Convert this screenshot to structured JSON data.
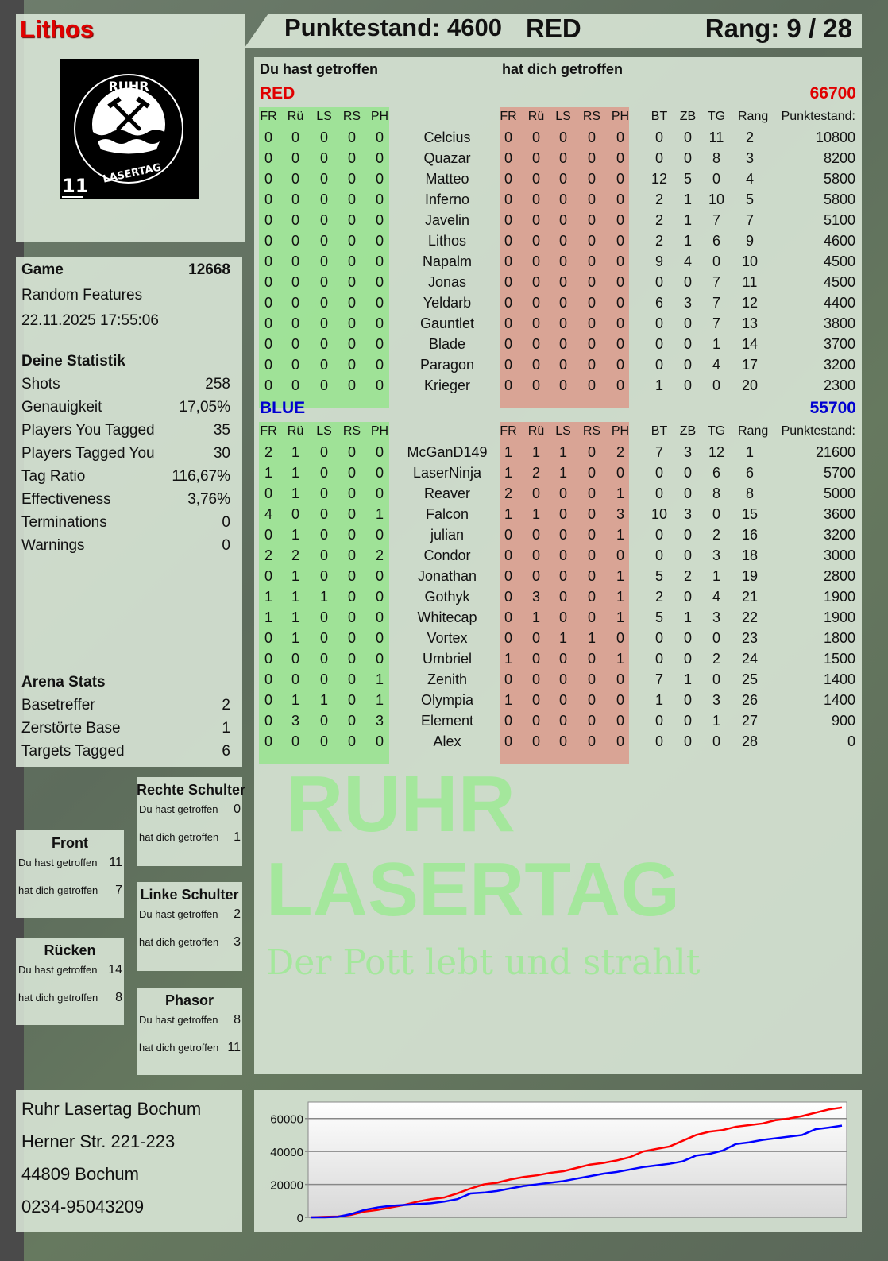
{
  "player": {
    "name": "Lithos",
    "logo_text": [
      "RUHR",
      "LASERTAG"
    ],
    "logo_number": "11"
  },
  "header": {
    "score_label": "Punktestand: 4600",
    "team": "RED",
    "rank_label": "Rang: 9 / 28"
  },
  "watermark": {
    "line1": "RUHR",
    "line2": "LASERTAG",
    "slogan": "Der Pott lebt und strahlt"
  },
  "game": {
    "label": "Game",
    "id": "12668",
    "mode": "Random Features",
    "datetime": "22.11.2025 17:55:06"
  },
  "stats": {
    "title": "Deine Statistik",
    "rows": [
      {
        "label": "Shots",
        "value": "258"
      },
      {
        "label": "Genauigkeit",
        "value": "17,05%"
      },
      {
        "label": "Players You Tagged",
        "value": "35"
      },
      {
        "label": "Players Tagged You",
        "value": "30"
      },
      {
        "label": "Tag Ratio",
        "value": "116,67%"
      },
      {
        "label": "Effectiveness",
        "value": "3,76%"
      },
      {
        "label": "Terminations",
        "value": "0"
      },
      {
        "label": "Warnings",
        "value": "0"
      }
    ]
  },
  "arena": {
    "title": "Arena Stats",
    "rows": [
      {
        "label": "Basetreffer",
        "value": "2"
      },
      {
        "label": "Zerstörte Base",
        "value": "1"
      },
      {
        "label": "Targets Tagged",
        "value": "6"
      }
    ]
  },
  "zones": [
    {
      "title": "Rechte Schulter",
      "hit_label": "Du hast getroffen",
      "hit": "0",
      "got_label": "hat dich getroffen",
      "got": "1"
    },
    {
      "title": "Front",
      "hit_label": "Du hast getroffen",
      "hit": "11",
      "got_label": "hat dich getroffen",
      "got": "7"
    },
    {
      "title": "Linke Schulter",
      "hit_label": "Du hast getroffen",
      "hit": "2",
      "got_label": "hat dich getroffen",
      "got": "3"
    },
    {
      "title": "Rücken",
      "hit_label": "Du hast getroffen",
      "hit": "14",
      "got_label": "hat dich getroffen",
      "got": "8"
    },
    {
      "title": "Phasor",
      "hit_label": "Du hast getroffen",
      "hit": "8",
      "got_label": "hat dich getroffen",
      "got": "11"
    }
  ],
  "address": [
    "Ruhr Lasertag Bochum",
    "Herner Str. 221-223",
    "44809 Bochum",
    "0234-95043209"
  ],
  "table": {
    "you_hit_label": "Du hast getroffen",
    "hit_you_label": "hat dich getroffen",
    "hit_cols": [
      "FR",
      "Rü",
      "LS",
      "RS",
      "PH"
    ],
    "stat_cols": [
      "BT",
      "ZB",
      "TG",
      "Rang"
    ],
    "score_col": "Punktestand:",
    "teams": [
      {
        "name": "RED",
        "total": "66700",
        "color": "#e00000",
        "players": [
          {
            "name": "Celcius",
            "hit": [
              "0",
              "0",
              "0",
              "0",
              "0"
            ],
            "got": [
              "0",
              "0",
              "0",
              "0",
              "0"
            ],
            "stats": [
              "0",
              "0",
              "11",
              "2"
            ],
            "score": "10800"
          },
          {
            "name": "Quazar",
            "hit": [
              "0",
              "0",
              "0",
              "0",
              "0"
            ],
            "got": [
              "0",
              "0",
              "0",
              "0",
              "0"
            ],
            "stats": [
              "0",
              "0",
              "8",
              "3"
            ],
            "score": "8200"
          },
          {
            "name": "Matteo",
            "hit": [
              "0",
              "0",
              "0",
              "0",
              "0"
            ],
            "got": [
              "0",
              "0",
              "0",
              "0",
              "0"
            ],
            "stats": [
              "12",
              "5",
              "0",
              "4"
            ],
            "score": "5800"
          },
          {
            "name": "Inferno",
            "hit": [
              "0",
              "0",
              "0",
              "0",
              "0"
            ],
            "got": [
              "0",
              "0",
              "0",
              "0",
              "0"
            ],
            "stats": [
              "2",
              "1",
              "10",
              "5"
            ],
            "score": "5800"
          },
          {
            "name": "Javelin",
            "hit": [
              "0",
              "0",
              "0",
              "0",
              "0"
            ],
            "got": [
              "0",
              "0",
              "0",
              "0",
              "0"
            ],
            "stats": [
              "2",
              "1",
              "7",
              "7"
            ],
            "score": "5100"
          },
          {
            "name": "Lithos",
            "hit": [
              "0",
              "0",
              "0",
              "0",
              "0"
            ],
            "got": [
              "0",
              "0",
              "0",
              "0",
              "0"
            ],
            "stats": [
              "2",
              "1",
              "6",
              "9"
            ],
            "score": "4600"
          },
          {
            "name": "Napalm",
            "hit": [
              "0",
              "0",
              "0",
              "0",
              "0"
            ],
            "got": [
              "0",
              "0",
              "0",
              "0",
              "0"
            ],
            "stats": [
              "9",
              "4",
              "0",
              "10"
            ],
            "score": "4500"
          },
          {
            "name": "Jonas",
            "hit": [
              "0",
              "0",
              "0",
              "0",
              "0"
            ],
            "got": [
              "0",
              "0",
              "0",
              "0",
              "0"
            ],
            "stats": [
              "0",
              "0",
              "7",
              "11"
            ],
            "score": "4500"
          },
          {
            "name": "Yeldarb",
            "hit": [
              "0",
              "0",
              "0",
              "0",
              "0"
            ],
            "got": [
              "0",
              "0",
              "0",
              "0",
              "0"
            ],
            "stats": [
              "6",
              "3",
              "7",
              "12"
            ],
            "score": "4400"
          },
          {
            "name": "Gauntlet",
            "hit": [
              "0",
              "0",
              "0",
              "0",
              "0"
            ],
            "got": [
              "0",
              "0",
              "0",
              "0",
              "0"
            ],
            "stats": [
              "0",
              "0",
              "7",
              "13"
            ],
            "score": "3800"
          },
          {
            "name": "Blade",
            "hit": [
              "0",
              "0",
              "0",
              "0",
              "0"
            ],
            "got": [
              "0",
              "0",
              "0",
              "0",
              "0"
            ],
            "stats": [
              "0",
              "0",
              "1",
              "14"
            ],
            "score": "3700"
          },
          {
            "name": "Paragon",
            "hit": [
              "0",
              "0",
              "0",
              "0",
              "0"
            ],
            "got": [
              "0",
              "0",
              "0",
              "0",
              "0"
            ],
            "stats": [
              "0",
              "0",
              "4",
              "17"
            ],
            "score": "3200"
          },
          {
            "name": "Krieger",
            "hit": [
              "0",
              "0",
              "0",
              "0",
              "0"
            ],
            "got": [
              "0",
              "0",
              "0",
              "0",
              "0"
            ],
            "stats": [
              "1",
              "0",
              "0",
              "20"
            ],
            "score": "2300"
          }
        ]
      },
      {
        "name": "BLUE",
        "total": "55700",
        "color": "#0000d0",
        "players": [
          {
            "name": "McGanD149",
            "hit": [
              "2",
              "1",
              "0",
              "0",
              "0"
            ],
            "got": [
              "1",
              "1",
              "1",
              "0",
              "2"
            ],
            "stats": [
              "7",
              "3",
              "12",
              "1"
            ],
            "score": "21600"
          },
          {
            "name": "LaserNinja",
            "hit": [
              "1",
              "1",
              "0",
              "0",
              "0"
            ],
            "got": [
              "1",
              "2",
              "1",
              "0",
              "0"
            ],
            "stats": [
              "0",
              "0",
              "6",
              "6"
            ],
            "score": "5700"
          },
          {
            "name": "Reaver",
            "hit": [
              "0",
              "1",
              "0",
              "0",
              "0"
            ],
            "got": [
              "2",
              "0",
              "0",
              "0",
              "1"
            ],
            "stats": [
              "0",
              "0",
              "8",
              "8"
            ],
            "score": "5000"
          },
          {
            "name": "Falcon",
            "hit": [
              "4",
              "0",
              "0",
              "0",
              "1"
            ],
            "got": [
              "1",
              "1",
              "0",
              "0",
              "3"
            ],
            "stats": [
              "10",
              "3",
              "0",
              "15"
            ],
            "score": "3600"
          },
          {
            "name": "julian",
            "hit": [
              "0",
              "1",
              "0",
              "0",
              "0"
            ],
            "got": [
              "0",
              "0",
              "0",
              "0",
              "1"
            ],
            "stats": [
              "0",
              "0",
              "2",
              "16"
            ],
            "score": "3200"
          },
          {
            "name": "Condor",
            "hit": [
              "2",
              "2",
              "0",
              "0",
              "2"
            ],
            "got": [
              "0",
              "0",
              "0",
              "0",
              "0"
            ],
            "stats": [
              "0",
              "0",
              "3",
              "18"
            ],
            "score": "3000"
          },
          {
            "name": "Jonathan",
            "hit": [
              "0",
              "1",
              "0",
              "0",
              "0"
            ],
            "got": [
              "0",
              "0",
              "0",
              "0",
              "1"
            ],
            "stats": [
              "5",
              "2",
              "1",
              "19"
            ],
            "score": "2800"
          },
          {
            "name": "Gothyk",
            "hit": [
              "1",
              "1",
              "1",
              "0",
              "0"
            ],
            "got": [
              "0",
              "3",
              "0",
              "0",
              "1"
            ],
            "stats": [
              "2",
              "0",
              "4",
              "21"
            ],
            "score": "1900"
          },
          {
            "name": "Whitecap",
            "hit": [
              "1",
              "1",
              "0",
              "0",
              "0"
            ],
            "got": [
              "0",
              "1",
              "0",
              "0",
              "1"
            ],
            "stats": [
              "5",
              "1",
              "3",
              "22"
            ],
            "score": "1900"
          },
          {
            "name": "Vortex",
            "hit": [
              "0",
              "1",
              "0",
              "0",
              "0"
            ],
            "got": [
              "0",
              "0",
              "1",
              "1",
              "0"
            ],
            "stats": [
              "0",
              "0",
              "0",
              "23"
            ],
            "score": "1800"
          },
          {
            "name": "Umbriel",
            "hit": [
              "0",
              "0",
              "0",
              "0",
              "0"
            ],
            "got": [
              "1",
              "0",
              "0",
              "0",
              "1"
            ],
            "stats": [
              "0",
              "0",
              "2",
              "24"
            ],
            "score": "1500"
          },
          {
            "name": "Zenith",
            "hit": [
              "0",
              "0",
              "0",
              "0",
              "1"
            ],
            "got": [
              "0",
              "0",
              "0",
              "0",
              "0"
            ],
            "stats": [
              "7",
              "1",
              "0",
              "25"
            ],
            "score": "1400"
          },
          {
            "name": "Olympia",
            "hit": [
              "0",
              "1",
              "1",
              "0",
              "1"
            ],
            "got": [
              "1",
              "0",
              "0",
              "0",
              "0"
            ],
            "stats": [
              "1",
              "0",
              "3",
              "26"
            ],
            "score": "1400"
          },
          {
            "name": "Element",
            "hit": [
              "0",
              "3",
              "0",
              "0",
              "3"
            ],
            "got": [
              "0",
              "0",
              "0",
              "0",
              "0"
            ],
            "stats": [
              "0",
              "0",
              "1",
              "27"
            ],
            "score": "900"
          },
          {
            "name": "Alex",
            "hit": [
              "0",
              "0",
              "0",
              "0",
              "0"
            ],
            "got": [
              "0",
              "0",
              "0",
              "0",
              "0"
            ],
            "stats": [
              "0",
              "0",
              "0",
              "28"
            ],
            "score": "0"
          }
        ]
      }
    ]
  },
  "chart_data": {
    "type": "line",
    "title": "",
    "xlabel": "",
    "ylabel": "",
    "ylim": [
      0,
      70000
    ],
    "yticks": [
      "0",
      "20000",
      "40000",
      "60000"
    ],
    "grid": true,
    "legend": "none",
    "series": [
      {
        "color": "#ff0000",
        "values": [
          0,
          300,
          500,
          1500,
          3500,
          4500,
          6000,
          7500,
          9500,
          11000,
          12000,
          14500,
          17500,
          20000,
          21000,
          23000,
          24500,
          25500,
          27000,
          28000,
          30000,
          32000,
          33000,
          34500,
          36500,
          40000,
          41500,
          43000,
          46500,
          50000,
          52000,
          53000,
          55000,
          56000,
          57000,
          59000,
          60000,
          61500,
          63500,
          65500,
          66700
        ]
      },
      {
        "color": "#0000ff",
        "values": [
          0,
          0,
          300,
          2000,
          4500,
          6000,
          7000,
          7500,
          8000,
          8500,
          9500,
          11000,
          14500,
          15000,
          16000,
          17500,
          19000,
          20000,
          21000,
          22000,
          23500,
          25000,
          26500,
          27500,
          29000,
          30500,
          31500,
          32500,
          34000,
          37500,
          38500,
          40500,
          44500,
          45500,
          47000,
          48000,
          49000,
          50000,
          53500,
          54500,
          55700
        ]
      }
    ]
  }
}
